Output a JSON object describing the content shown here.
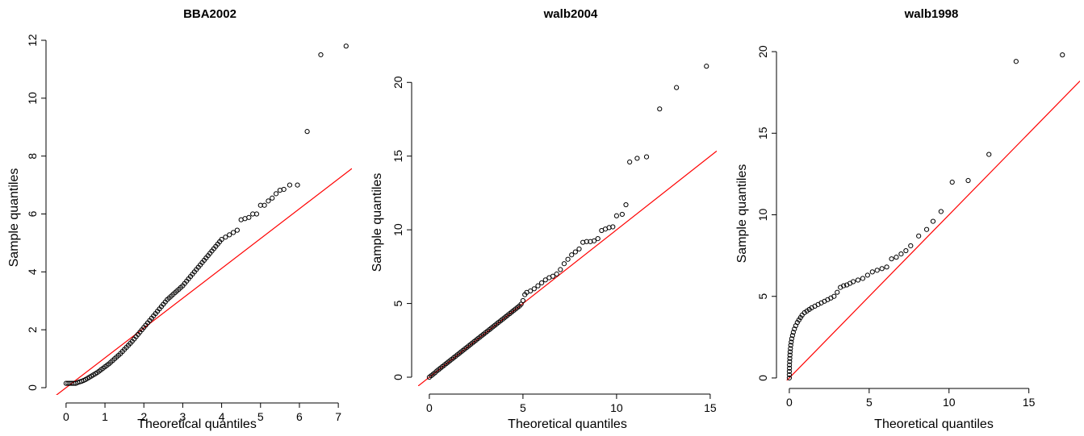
{
  "chart_data": [
    {
      "type": "scatter",
      "title": "BBA2002",
      "xlabel": "Theoretical quantiles",
      "ylabel": "Sample quantiles",
      "xlim": [
        -0.35,
        7.35
      ],
      "ylim": [
        -0.25,
        12.0
      ],
      "xticks": [
        0,
        1,
        2,
        3,
        4,
        5,
        6,
        7
      ],
      "yticks": [
        0,
        2,
        4,
        6,
        8,
        10,
        12
      ],
      "reference_line": {
        "intercept": 0.0,
        "slope": 1.03,
        "color": "#ff0000"
      },
      "point_color": "#000000",
      "points": [
        [
          0.0,
          0.15
        ],
        [
          0.05,
          0.15
        ],
        [
          0.1,
          0.15
        ],
        [
          0.15,
          0.15
        ],
        [
          0.2,
          0.15
        ],
        [
          0.25,
          0.15
        ],
        [
          0.3,
          0.18
        ],
        [
          0.35,
          0.2
        ],
        [
          0.4,
          0.22
        ],
        [
          0.45,
          0.25
        ],
        [
          0.5,
          0.28
        ],
        [
          0.55,
          0.32
        ],
        [
          0.6,
          0.36
        ],
        [
          0.65,
          0.4
        ],
        [
          0.7,
          0.44
        ],
        [
          0.75,
          0.48
        ],
        [
          0.8,
          0.52
        ],
        [
          0.85,
          0.57
        ],
        [
          0.9,
          0.62
        ],
        [
          0.95,
          0.67
        ],
        [
          1.0,
          0.72
        ],
        [
          1.05,
          0.77
        ],
        [
          1.1,
          0.82
        ],
        [
          1.15,
          0.88
        ],
        [
          1.2,
          0.94
        ],
        [
          1.25,
          1.0
        ],
        [
          1.3,
          1.06
        ],
        [
          1.35,
          1.12
        ],
        [
          1.4,
          1.18
        ],
        [
          1.45,
          1.25
        ],
        [
          1.5,
          1.32
        ],
        [
          1.55,
          1.39
        ],
        [
          1.6,
          1.46
        ],
        [
          1.65,
          1.53
        ],
        [
          1.7,
          1.6
        ],
        [
          1.75,
          1.68
        ],
        [
          1.8,
          1.76
        ],
        [
          1.85,
          1.84
        ],
        [
          1.9,
          1.92
        ],
        [
          1.95,
          2.0
        ],
        [
          2.0,
          2.08
        ],
        [
          2.05,
          2.16
        ],
        [
          2.1,
          2.24
        ],
        [
          2.15,
          2.32
        ],
        [
          2.2,
          2.4
        ],
        [
          2.25,
          2.48
        ],
        [
          2.3,
          2.56
        ],
        [
          2.35,
          2.64
        ],
        [
          2.4,
          2.72
        ],
        [
          2.45,
          2.8
        ],
        [
          2.5,
          2.88
        ],
        [
          2.55,
          2.96
        ],
        [
          2.6,
          3.04
        ],
        [
          2.65,
          3.1
        ],
        [
          2.7,
          3.16
        ],
        [
          2.75,
          3.22
        ],
        [
          2.8,
          3.28
        ],
        [
          2.85,
          3.34
        ],
        [
          2.9,
          3.4
        ],
        [
          2.95,
          3.46
        ],
        [
          3.0,
          3.52
        ],
        [
          3.05,
          3.6
        ],
        [
          3.1,
          3.68
        ],
        [
          3.15,
          3.76
        ],
        [
          3.2,
          3.84
        ],
        [
          3.25,
          3.92
        ],
        [
          3.3,
          4.0
        ],
        [
          3.35,
          4.08
        ],
        [
          3.4,
          4.16
        ],
        [
          3.45,
          4.24
        ],
        [
          3.5,
          4.32
        ],
        [
          3.55,
          4.4
        ],
        [
          3.6,
          4.48
        ],
        [
          3.65,
          4.56
        ],
        [
          3.7,
          4.64
        ],
        [
          3.75,
          4.72
        ],
        [
          3.8,
          4.8
        ],
        [
          3.85,
          4.88
        ],
        [
          3.9,
          4.96
        ],
        [
          3.95,
          5.04
        ],
        [
          4.0,
          5.12
        ],
        [
          4.1,
          5.2
        ],
        [
          4.2,
          5.28
        ],
        [
          4.3,
          5.36
        ],
        [
          4.4,
          5.44
        ],
        [
          4.5,
          5.8
        ],
        [
          4.6,
          5.84
        ],
        [
          4.7,
          5.88
        ],
        [
          4.8,
          6.0
        ],
        [
          4.9,
          6.0
        ],
        [
          5.0,
          6.3
        ],
        [
          5.1,
          6.3
        ],
        [
          5.2,
          6.45
        ],
        [
          5.3,
          6.55
        ],
        [
          5.4,
          6.7
        ],
        [
          5.5,
          6.82
        ],
        [
          5.6,
          6.85
        ],
        [
          5.75,
          7.0
        ],
        [
          5.95,
          7.0
        ],
        [
          6.2,
          8.85
        ],
        [
          6.55,
          11.5
        ],
        [
          7.2,
          11.8
        ]
      ]
    },
    {
      "type": "scatter",
      "title": "walb2004",
      "xlabel": "Theoretical quantiles",
      "ylabel": "Sample quantiles",
      "xlim": [
        -0.6,
        15.35
      ],
      "ylim": [
        -0.6,
        21.6
      ],
      "xticks": [
        0,
        5,
        10,
        15
      ],
      "yticks": [
        0,
        5,
        10,
        15,
        20
      ],
      "reference_line": {
        "intercept": 0.0,
        "slope": 1.0,
        "color": "#ff0000"
      },
      "point_color": "#000000",
      "points": [
        [
          0.0,
          0.0
        ],
        [
          0.1,
          0.1
        ],
        [
          0.2,
          0.2
        ],
        [
          0.3,
          0.3
        ],
        [
          0.4,
          0.42
        ],
        [
          0.5,
          0.52
        ],
        [
          0.6,
          0.62
        ],
        [
          0.7,
          0.72
        ],
        [
          0.8,
          0.82
        ],
        [
          0.9,
          0.92
        ],
        [
          1.0,
          1.02
        ],
        [
          1.1,
          1.12
        ],
        [
          1.2,
          1.22
        ],
        [
          1.3,
          1.32
        ],
        [
          1.4,
          1.42
        ],
        [
          1.5,
          1.52
        ],
        [
          1.6,
          1.62
        ],
        [
          1.7,
          1.72
        ],
        [
          1.8,
          1.82
        ],
        [
          1.9,
          1.92
        ],
        [
          2.0,
          2.02
        ],
        [
          2.1,
          2.12
        ],
        [
          2.2,
          2.22
        ],
        [
          2.3,
          2.32
        ],
        [
          2.4,
          2.42
        ],
        [
          2.5,
          2.52
        ],
        [
          2.6,
          2.62
        ],
        [
          2.7,
          2.72
        ],
        [
          2.8,
          2.82
        ],
        [
          2.9,
          2.92
        ],
        [
          3.0,
          3.02
        ],
        [
          3.1,
          3.12
        ],
        [
          3.2,
          3.22
        ],
        [
          3.3,
          3.32
        ],
        [
          3.4,
          3.42
        ],
        [
          3.5,
          3.52
        ],
        [
          3.6,
          3.62
        ],
        [
          3.7,
          3.72
        ],
        [
          3.8,
          3.82
        ],
        [
          3.9,
          3.92
        ],
        [
          4.0,
          4.02
        ],
        [
          4.1,
          4.12
        ],
        [
          4.2,
          4.22
        ],
        [
          4.3,
          4.32
        ],
        [
          4.4,
          4.42
        ],
        [
          4.5,
          4.52
        ],
        [
          4.6,
          4.62
        ],
        [
          4.7,
          4.72
        ],
        [
          4.8,
          4.82
        ],
        [
          4.9,
          4.95
        ],
        [
          5.0,
          5.2
        ],
        [
          5.1,
          5.6
        ],
        [
          5.2,
          5.75
        ],
        [
          5.4,
          5.85
        ],
        [
          5.6,
          6.0
        ],
        [
          5.8,
          6.2
        ],
        [
          6.0,
          6.4
        ],
        [
          6.2,
          6.6
        ],
        [
          6.4,
          6.75
        ],
        [
          6.6,
          6.85
        ],
        [
          6.8,
          7.0
        ],
        [
          7.0,
          7.3
        ],
        [
          7.2,
          7.7
        ],
        [
          7.4,
          8.0
        ],
        [
          7.6,
          8.3
        ],
        [
          7.8,
          8.5
        ],
        [
          8.0,
          8.7
        ],
        [
          8.2,
          9.15
        ],
        [
          8.4,
          9.2
        ],
        [
          8.6,
          9.2
        ],
        [
          8.8,
          9.25
        ],
        [
          9.0,
          9.4
        ],
        [
          9.2,
          9.95
        ],
        [
          9.4,
          10.05
        ],
        [
          9.6,
          10.15
        ],
        [
          9.8,
          10.2
        ],
        [
          10.0,
          10.95
        ],
        [
          10.3,
          11.05
        ],
        [
          10.5,
          11.7
        ],
        [
          10.7,
          14.6
        ],
        [
          11.1,
          14.85
        ],
        [
          11.6,
          14.95
        ],
        [
          12.3,
          18.2
        ],
        [
          13.2,
          19.65
        ],
        [
          14.8,
          21.1
        ]
      ]
    },
    {
      "type": "scatter",
      "title": "walb1998",
      "xlabel": "Theoretical quantiles",
      "ylabel": "Sample quantiles",
      "xlim": [
        -0.4,
        18.2
      ],
      "ylim": [
        -0.15,
        20.3
      ],
      "xticks": [
        0,
        5,
        10,
        15
      ],
      "yticks": [
        0,
        5,
        10,
        15,
        20
      ],
      "reference_line": {
        "intercept": 0.0,
        "slope": 1.0,
        "color": "#ff0000"
      },
      "point_color": "#000000",
      "points": [
        [
          0.0,
          0.0
        ],
        [
          0.0,
          0.2
        ],
        [
          0.0,
          0.4
        ],
        [
          0.01,
          0.6
        ],
        [
          0.01,
          0.8
        ],
        [
          0.02,
          1.0
        ],
        [
          0.03,
          1.2
        ],
        [
          0.04,
          1.4
        ],
        [
          0.05,
          1.6
        ],
        [
          0.07,
          1.8
        ],
        [
          0.09,
          2.0
        ],
        [
          0.12,
          2.2
        ],
        [
          0.15,
          2.4
        ],
        [
          0.2,
          2.6
        ],
        [
          0.25,
          2.8
        ],
        [
          0.32,
          3.0
        ],
        [
          0.4,
          3.2
        ],
        [
          0.5,
          3.4
        ],
        [
          0.6,
          3.55
        ],
        [
          0.7,
          3.7
        ],
        [
          0.8,
          3.85
        ],
        [
          0.95,
          4.0
        ],
        [
          1.1,
          4.1
        ],
        [
          1.25,
          4.2
        ],
        [
          1.4,
          4.3
        ],
        [
          1.6,
          4.4
        ],
        [
          1.8,
          4.5
        ],
        [
          2.0,
          4.6
        ],
        [
          2.2,
          4.7
        ],
        [
          2.4,
          4.8
        ],
        [
          2.6,
          4.9
        ],
        [
          2.8,
          5.0
        ],
        [
          3.0,
          5.25
        ],
        [
          3.2,
          5.55
        ],
        [
          3.4,
          5.65
        ],
        [
          3.6,
          5.7
        ],
        [
          3.8,
          5.8
        ],
        [
          4.0,
          5.9
        ],
        [
          4.3,
          6.0
        ],
        [
          4.6,
          6.1
        ],
        [
          4.9,
          6.3
        ],
        [
          5.2,
          6.5
        ],
        [
          5.5,
          6.6
        ],
        [
          5.8,
          6.7
        ],
        [
          6.1,
          6.8
        ],
        [
          6.4,
          7.3
        ],
        [
          6.7,
          7.4
        ],
        [
          7.0,
          7.6
        ],
        [
          7.3,
          7.8
        ],
        [
          7.6,
          8.1
        ],
        [
          8.1,
          8.7
        ],
        [
          8.6,
          9.1
        ],
        [
          9.0,
          9.6
        ],
        [
          9.5,
          10.2
        ],
        [
          10.2,
          12.0
        ],
        [
          11.2,
          12.1
        ],
        [
          12.5,
          13.7
        ],
        [
          14.2,
          19.4
        ],
        [
          17.1,
          19.8
        ]
      ]
    }
  ]
}
